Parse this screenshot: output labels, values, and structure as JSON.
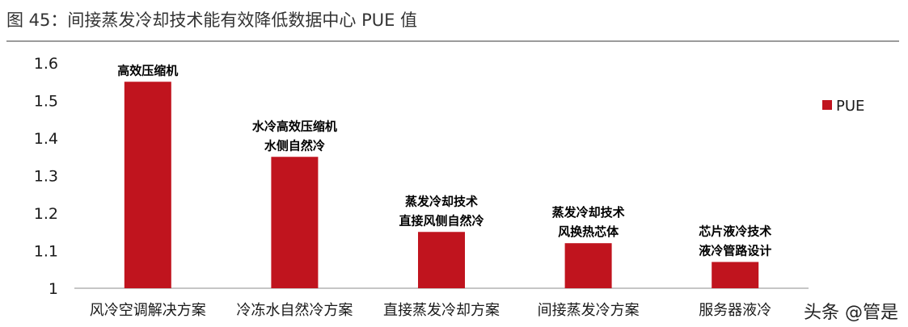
{
  "figure": {
    "title": "图 45：间接蒸发冷却技术能有效降低数据中心 PUE 值"
  },
  "watermark": "头条 @管是",
  "colors": {
    "bar": "#C0141E",
    "text": "#1a1a1a",
    "axis": "#b3b3b3"
  },
  "chart_data": {
    "type": "bar",
    "title": "图 45：间接蒸发冷却技术能有效降低数据中心 PUE 值",
    "categories": [
      "风冷空调解决方案",
      "冷冻水自然冷方案",
      "直接蒸发冷却方案",
      "间接蒸发冷方案",
      "服务器液冷"
    ],
    "series": [
      {
        "name": "PUE",
        "values": [
          1.55,
          1.35,
          1.15,
          1.12,
          1.07
        ]
      }
    ],
    "annotations": [
      [
        "高效压缩机"
      ],
      [
        "水冷高效压缩机",
        "水侧自然冷"
      ],
      [
        "蒸发冷却技术",
        "直接风侧自然冷"
      ],
      [
        "蒸发冷却技术",
        "风换热芯体"
      ],
      [
        "芯片液冷技术",
        "液冷管路设计"
      ]
    ],
    "ylim": [
      1,
      1.6
    ],
    "yticks": [
      "1",
      "1.1",
      "1.2",
      "1.3",
      "1.4",
      "1.5",
      "1.6"
    ],
    "ytick_values": [
      1,
      1.1,
      1.2,
      1.3,
      1.4,
      1.5,
      1.6
    ],
    "legend": {
      "position": "right",
      "label": "PUE"
    },
    "grid": false
  }
}
